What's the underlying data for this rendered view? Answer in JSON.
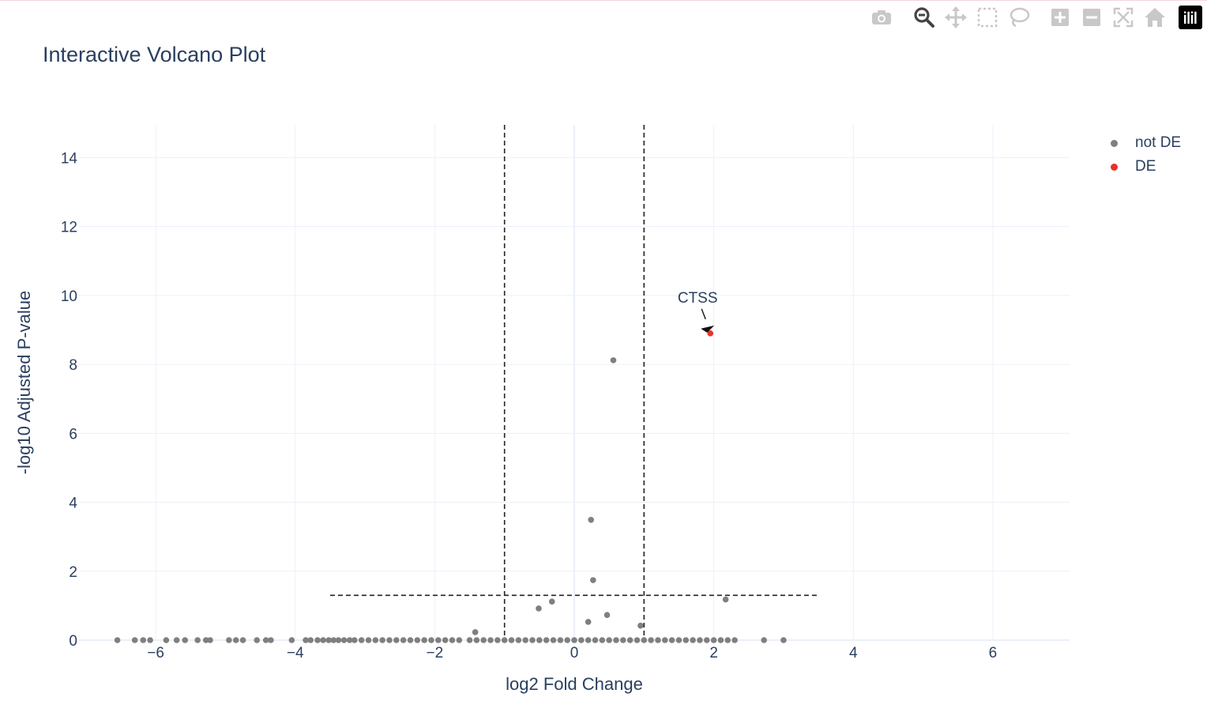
{
  "toolbar": {
    "buttons": [
      "camera-icon",
      "zoom-icon",
      "pan-icon",
      "box-select-icon",
      "lasso-icon",
      "zoom-in-icon",
      "zoom-out-icon",
      "autoscale-icon",
      "reset-axes-icon"
    ],
    "active": "zoom-icon",
    "logo": "plotly-logo-icon"
  },
  "colors": {
    "not_de": "#7f7f7f",
    "de": "#e8312a",
    "axis_text": "#2a3f5f",
    "grid": "#ebf0f8"
  },
  "chart_data": {
    "type": "scatter",
    "title": "Interactive Volcano Plot",
    "xlabel": "log2 Fold Change",
    "ylabel": "-log10 Adjusted P-value",
    "xlim": [
      -7.1,
      7.1
    ],
    "ylim": [
      0,
      14.95
    ],
    "xticks": [
      -6,
      -4,
      -2,
      0,
      2,
      4,
      6
    ],
    "xtick_labels": [
      "−6",
      "−4",
      "−2",
      "0",
      "2",
      "4",
      "6"
    ],
    "yticks": [
      0,
      2,
      4,
      6,
      8,
      10,
      12,
      14
    ],
    "ytick_labels": [
      "0",
      "2",
      "4",
      "6",
      "8",
      "10",
      "12",
      "14"
    ],
    "grid": true,
    "legend_position": "top-right",
    "thresholds": {
      "x": [
        -1,
        1
      ],
      "y": 1.3,
      "y_line_x_range": [
        -3.5,
        3.5
      ]
    },
    "series": [
      {
        "name": "not DE",
        "color": "#7f7f7f",
        "points": [
          [
            0.56,
            8.12
          ],
          [
            0.24,
            3.49
          ],
          [
            0.27,
            1.74
          ],
          [
            2.17,
            1.18
          ],
          [
            -0.32,
            1.12
          ],
          [
            -0.51,
            0.92
          ],
          [
            0.47,
            0.73
          ],
          [
            0.2,
            0.53
          ],
          [
            0.95,
            0.42
          ],
          [
            -1.42,
            0.23
          ],
          [
            -6.55,
            0
          ],
          [
            -6.3,
            0
          ],
          [
            -6.18,
            0
          ],
          [
            -6.08,
            0
          ],
          [
            -5.85,
            0
          ],
          [
            -5.7,
            0
          ],
          [
            -5.58,
            0
          ],
          [
            -5.4,
            0
          ],
          [
            -5.28,
            0
          ],
          [
            -5.22,
            0
          ],
          [
            -4.95,
            0
          ],
          [
            -4.85,
            0
          ],
          [
            -4.75,
            0
          ],
          [
            -4.55,
            0
          ],
          [
            -4.42,
            0
          ],
          [
            -4.35,
            0
          ],
          [
            -4.05,
            0
          ],
          [
            -3.85,
            0
          ],
          [
            -3.78,
            0
          ],
          [
            -3.68,
            0
          ],
          [
            -3.6,
            0
          ],
          [
            -3.52,
            0
          ],
          [
            -3.45,
            0
          ],
          [
            -3.38,
            0
          ],
          [
            -3.3,
            0
          ],
          [
            -3.22,
            0
          ],
          [
            -3.15,
            0
          ],
          [
            -3.05,
            0
          ],
          [
            -2.95,
            0
          ],
          [
            -2.85,
            0
          ],
          [
            -2.75,
            0
          ],
          [
            -2.65,
            0
          ],
          [
            -2.55,
            0
          ],
          [
            -2.45,
            0
          ],
          [
            -2.35,
            0
          ],
          [
            -2.25,
            0
          ],
          [
            -2.15,
            0
          ],
          [
            -2.05,
            0
          ],
          [
            -1.95,
            0
          ],
          [
            -1.85,
            0
          ],
          [
            -1.75,
            0
          ],
          [
            -1.65,
            0
          ],
          [
            -1.5,
            0
          ],
          [
            -1.4,
            0
          ],
          [
            -1.3,
            0
          ],
          [
            -1.2,
            0
          ],
          [
            -1.1,
            0
          ],
          [
            -1.0,
            0
          ],
          [
            -0.9,
            0
          ],
          [
            -0.8,
            0
          ],
          [
            -0.7,
            0
          ],
          [
            -0.6,
            0
          ],
          [
            -0.5,
            0
          ],
          [
            -0.4,
            0
          ],
          [
            -0.3,
            0
          ],
          [
            -0.2,
            0
          ],
          [
            -0.1,
            0
          ],
          [
            0.0,
            0
          ],
          [
            0.1,
            0
          ],
          [
            0.2,
            0
          ],
          [
            0.3,
            0
          ],
          [
            0.4,
            0
          ],
          [
            0.5,
            0
          ],
          [
            0.6,
            0
          ],
          [
            0.7,
            0
          ],
          [
            0.8,
            0
          ],
          [
            0.9,
            0
          ],
          [
            1.0,
            0
          ],
          [
            1.1,
            0
          ],
          [
            1.2,
            0
          ],
          [
            1.3,
            0
          ],
          [
            1.4,
            0
          ],
          [
            1.5,
            0
          ],
          [
            1.6,
            0
          ],
          [
            1.7,
            0
          ],
          [
            1.8,
            0
          ],
          [
            1.9,
            0
          ],
          [
            2.0,
            0
          ],
          [
            2.1,
            0
          ],
          [
            2.2,
            0
          ],
          [
            2.3,
            0
          ],
          [
            2.72,
            0
          ],
          [
            3.0,
            0
          ]
        ]
      },
      {
        "name": "DE",
        "color": "#e8312a",
        "points": [
          [
            1.95,
            8.9
          ]
        ]
      }
    ],
    "annotations": [
      {
        "text": "CTSS",
        "x": 1.95,
        "y": 8.9
      }
    ]
  }
}
